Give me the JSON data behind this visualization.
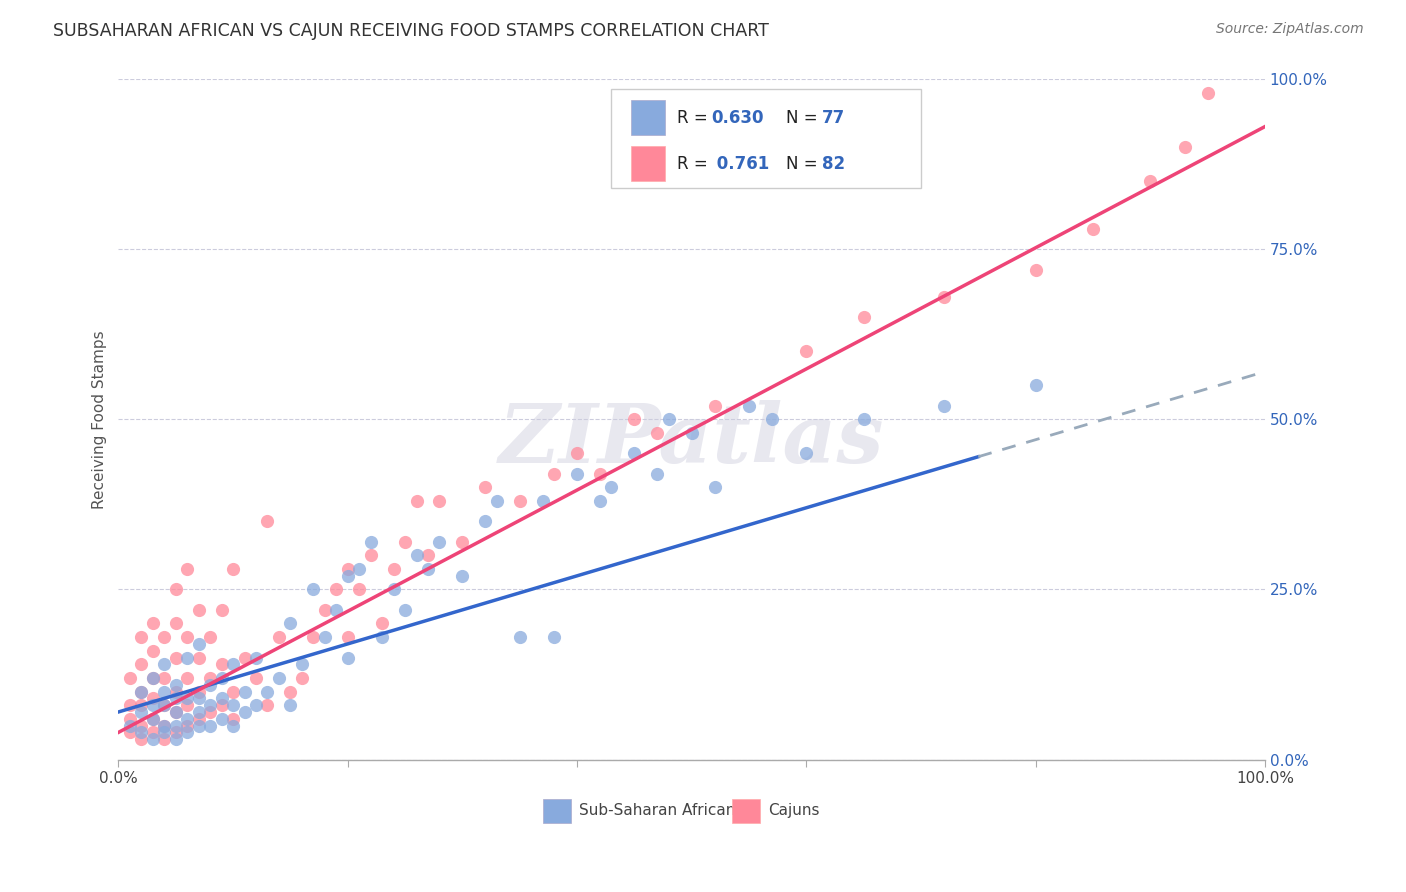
{
  "title": "SUBSAHARAN AFRICAN VS CAJUN RECEIVING FOOD STAMPS CORRELATION CHART",
  "source": "Source: ZipAtlas.com",
  "ylabel": "Receiving Food Stamps",
  "ytick_labels": [
    "0.0%",
    "25.0%",
    "50.0%",
    "75.0%",
    "100.0%"
  ],
  "ytick_values": [
    0,
    25,
    50,
    75,
    100
  ],
  "legend_label1": "Sub-Saharan Africans",
  "legend_label2": "Cajuns",
  "color_blue": "#88AADD",
  "color_pink": "#FF8899",
  "color_blue_line": "#3366CC",
  "color_pink_line": "#EE4477",
  "color_blue_text": "#3366BB",
  "color_dark": "#222222",
  "watermark": "ZIPatlas",
  "blue_line_x0": 0,
  "blue_line_y0": 7,
  "blue_line_x1": 100,
  "blue_line_y1": 57,
  "blue_dash_x0": 75,
  "blue_dash_x1": 100,
  "pink_line_x0": 0,
  "pink_line_y0": 4,
  "pink_line_x1": 100,
  "pink_line_y1": 93,
  "scatter_blue_x": [
    1,
    2,
    2,
    2,
    3,
    3,
    3,
    3,
    4,
    4,
    4,
    4,
    4,
    5,
    5,
    5,
    5,
    5,
    6,
    6,
    6,
    6,
    7,
    7,
    7,
    7,
    8,
    8,
    8,
    9,
    9,
    9,
    10,
    10,
    10,
    11,
    11,
    12,
    12,
    13,
    14,
    15,
    15,
    16,
    17,
    18,
    19,
    20,
    20,
    21,
    22,
    23,
    24,
    25,
    26,
    27,
    28,
    30,
    32,
    33,
    35,
    37,
    38,
    40,
    42,
    43,
    45,
    47,
    48,
    50,
    52,
    55,
    57,
    60,
    65,
    72,
    80
  ],
  "scatter_blue_y": [
    5,
    4,
    7,
    10,
    3,
    6,
    8,
    12,
    4,
    5,
    8,
    10,
    14,
    3,
    5,
    7,
    9,
    11,
    4,
    6,
    9,
    15,
    5,
    7,
    9,
    17,
    5,
    8,
    11,
    6,
    9,
    12,
    5,
    8,
    14,
    7,
    10,
    8,
    15,
    10,
    12,
    8,
    20,
    14,
    25,
    18,
    22,
    15,
    27,
    28,
    32,
    18,
    25,
    22,
    30,
    28,
    32,
    27,
    35,
    38,
    18,
    38,
    18,
    42,
    38,
    40,
    45,
    42,
    50,
    48,
    40,
    52,
    50,
    45,
    50,
    52,
    55
  ],
  "scatter_pink_x": [
    1,
    1,
    1,
    1,
    2,
    2,
    2,
    2,
    2,
    2,
    3,
    3,
    3,
    3,
    3,
    3,
    4,
    4,
    4,
    4,
    4,
    5,
    5,
    5,
    5,
    5,
    5,
    6,
    6,
    6,
    6,
    6,
    7,
    7,
    7,
    7,
    8,
    8,
    8,
    9,
    9,
    9,
    10,
    10,
    10,
    11,
    12,
    13,
    13,
    14,
    15,
    16,
    17,
    18,
    19,
    20,
    20,
    21,
    22,
    23,
    24,
    25,
    26,
    27,
    28,
    30,
    32,
    35,
    38,
    40,
    42,
    45,
    47,
    52,
    60,
    65,
    72,
    80,
    85,
    90,
    93,
    95
  ],
  "scatter_pink_y": [
    4,
    6,
    8,
    12,
    3,
    5,
    8,
    10,
    14,
    18,
    4,
    6,
    9,
    12,
    16,
    20,
    3,
    5,
    8,
    12,
    18,
    4,
    7,
    10,
    15,
    20,
    25,
    5,
    8,
    12,
    18,
    28,
    6,
    10,
    15,
    22,
    7,
    12,
    18,
    8,
    14,
    22,
    6,
    10,
    28,
    15,
    12,
    8,
    35,
    18,
    10,
    12,
    18,
    22,
    25,
    18,
    28,
    25,
    30,
    20,
    28,
    32,
    38,
    30,
    38,
    32,
    40,
    38,
    42,
    45,
    42,
    50,
    48,
    52,
    60,
    65,
    68,
    72,
    78,
    85,
    90,
    98
  ],
  "xlim": [
    0,
    100
  ],
  "ylim": [
    0,
    100
  ]
}
